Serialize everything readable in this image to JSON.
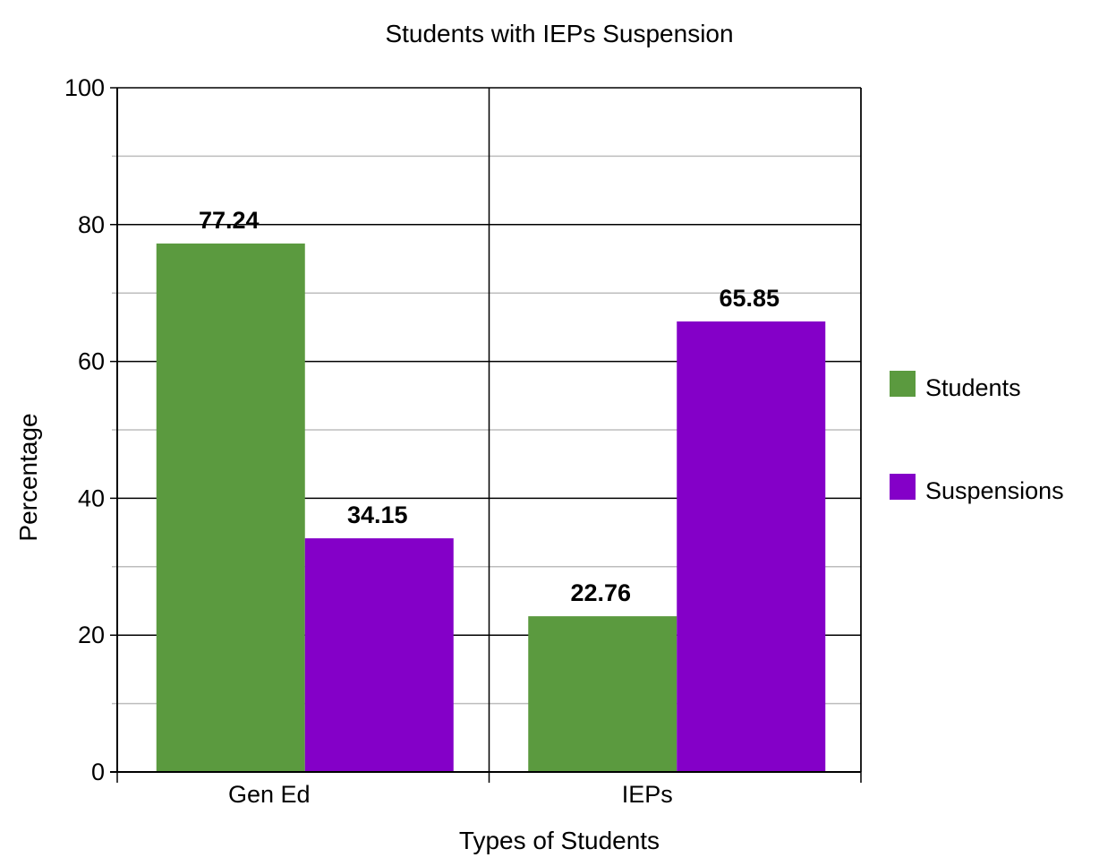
{
  "chart_data": {
    "type": "bar",
    "title": "Students with IEPs Suspension",
    "xlabel": "Types of Students",
    "ylabel": "Percentage",
    "categories": [
      "Gen Ed",
      "IEPs"
    ],
    "series": [
      {
        "name": "Students",
        "values": [
          77.24,
          22.76
        ],
        "value_labels": [
          "77.24",
          "22.76"
        ],
        "color": "#5b9a3f"
      },
      {
        "name": "Suspensions",
        "values": [
          34.15,
          65.85
        ],
        "value_labels": [
          "34.15",
          "65.85"
        ],
        "color": "#8400c8"
      }
    ],
    "ylim": [
      0,
      100
    ],
    "yticks": [
      0,
      20,
      40,
      60,
      80,
      100
    ],
    "ytick_labels": [
      "0",
      "20",
      "40",
      "60",
      "80",
      "100"
    ],
    "minor_grid": [
      10,
      30,
      50,
      70,
      90
    ],
    "grid": true,
    "legend_position": "right"
  }
}
